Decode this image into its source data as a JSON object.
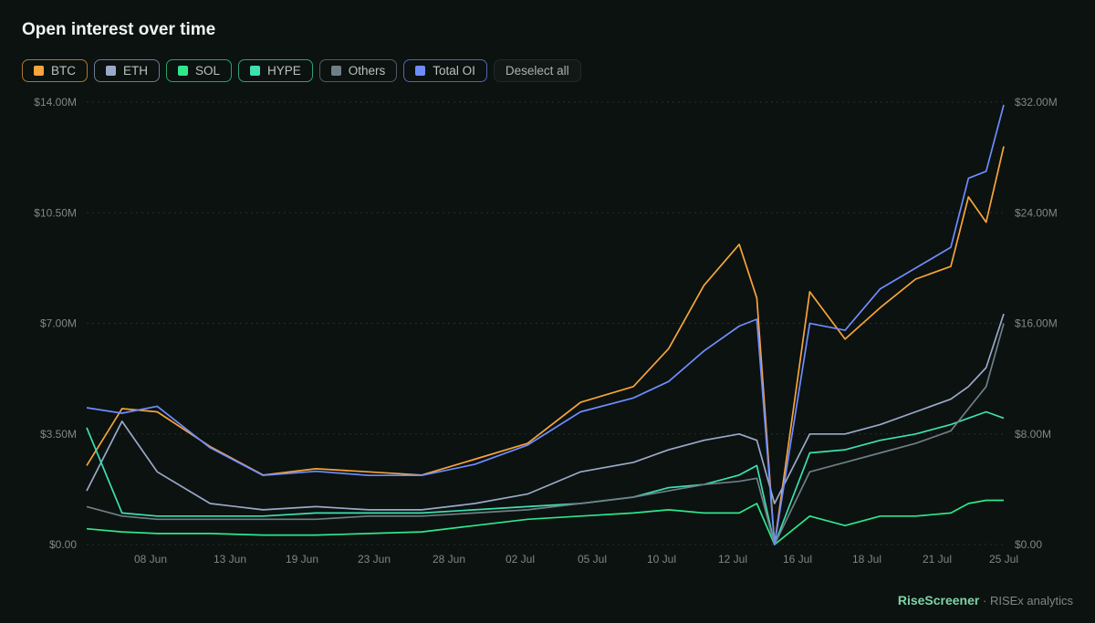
{
  "title": "Open interest over time",
  "legend": [
    {
      "label": "BTC",
      "color": "#f7a43a"
    },
    {
      "label": "ETH",
      "color": "#9aa9c9"
    },
    {
      "label": "SOL",
      "color": "#2ee68c"
    },
    {
      "label": "HYPE",
      "color": "#3ee0b0"
    },
    {
      "label": "Others",
      "color": "#6f7f86"
    },
    {
      "label": "Total OI",
      "color": "#6f8cff"
    }
  ],
  "deselect_label": "Deselect all",
  "footer": {
    "brand": "RiseScreener",
    "sep": "·",
    "suffix": "RISEx analytics"
  },
  "chart_data": {
    "type": "line",
    "title": "Open interest over time",
    "x_tick_labels": [
      "08 Jun",
      "13 Jun",
      "19 Jun",
      "23 Jun",
      "28 Jun",
      "02 Jul",
      "05 Jul",
      "10 Jul",
      "12 Jul",
      "16 Jul",
      "18 Jul",
      "21 Jul",
      "25 Jul"
    ],
    "y_left": {
      "ticks": [
        "$0.00",
        "$3.50M",
        "$7.00M",
        "$10.50M",
        "$14.00M"
      ],
      "range": [
        0,
        14
      ]
    },
    "y_right": {
      "ticks": [
        "$0.00",
        "$8.00M",
        "$16.00M",
        "$24.00M",
        "$32.00M"
      ],
      "range": [
        0,
        32
      ]
    },
    "grid": true,
    "legend_position": "top-left",
    "x": [
      0,
      2,
      4,
      7,
      10,
      13,
      16,
      19,
      22,
      25,
      28,
      31,
      33,
      35,
      37,
      38,
      39,
      41,
      43,
      45,
      47,
      49,
      50,
      51,
      52
    ],
    "series": [
      {
        "name": "BTC",
        "axis": "left",
        "color": "#f7a43a",
        "values": [
          2.5,
          4.3,
          4.2,
          3.1,
          2.2,
          2.4,
          2.3,
          2.2,
          2.7,
          3.2,
          4.5,
          5.0,
          6.2,
          8.2,
          9.5,
          7.8,
          0.0,
          8.0,
          6.5,
          7.5,
          8.4,
          8.8,
          11.0,
          10.2,
          12.6
        ]
      },
      {
        "name": "ETH",
        "axis": "left",
        "color": "#9aa9c9",
        "values": [
          1.7,
          3.9,
          2.3,
          1.3,
          1.1,
          1.2,
          1.1,
          1.1,
          1.3,
          1.6,
          2.3,
          2.6,
          3.0,
          3.3,
          3.5,
          3.3,
          1.3,
          3.5,
          3.5,
          3.8,
          4.2,
          4.6,
          5.0,
          5.6,
          7.3
        ]
      },
      {
        "name": "SOL",
        "axis": "left",
        "color": "#2ee68c",
        "values": [
          0.5,
          0.4,
          0.35,
          0.35,
          0.3,
          0.3,
          0.35,
          0.4,
          0.6,
          0.8,
          0.9,
          1.0,
          1.1,
          1.0,
          1.0,
          1.3,
          0.0,
          0.9,
          0.6,
          0.9,
          0.9,
          1.0,
          1.3,
          1.4,
          1.4
        ]
      },
      {
        "name": "HYPE",
        "axis": "left",
        "color": "#3ee0b0",
        "values": [
          3.7,
          1.0,
          0.9,
          0.9,
          0.9,
          1.0,
          1.0,
          1.0,
          1.1,
          1.2,
          1.3,
          1.5,
          1.8,
          1.9,
          2.2,
          2.5,
          0.0,
          2.9,
          3.0,
          3.3,
          3.5,
          3.8,
          4.0,
          4.2,
          4.0
        ]
      },
      {
        "name": "Others",
        "axis": "left",
        "color": "#6f7f86",
        "values": [
          1.2,
          0.9,
          0.8,
          0.8,
          0.8,
          0.8,
          0.9,
          0.9,
          1.0,
          1.1,
          1.3,
          1.5,
          1.7,
          1.9,
          2.0,
          2.1,
          0.0,
          2.3,
          2.6,
          2.9,
          3.2,
          3.6,
          4.3,
          5.0,
          7.0
        ]
      },
      {
        "name": "Total OI",
        "axis": "right",
        "color": "#6f8cff",
        "values": [
          9.9,
          9.5,
          10.0,
          7.0,
          5.0,
          5.3,
          5.0,
          5.0,
          5.8,
          7.2,
          9.6,
          10.6,
          11.8,
          14.0,
          15.8,
          16.3,
          0.0,
          16.0,
          15.5,
          18.5,
          20.0,
          21.5,
          26.5,
          27.0,
          31.8
        ]
      }
    ]
  }
}
